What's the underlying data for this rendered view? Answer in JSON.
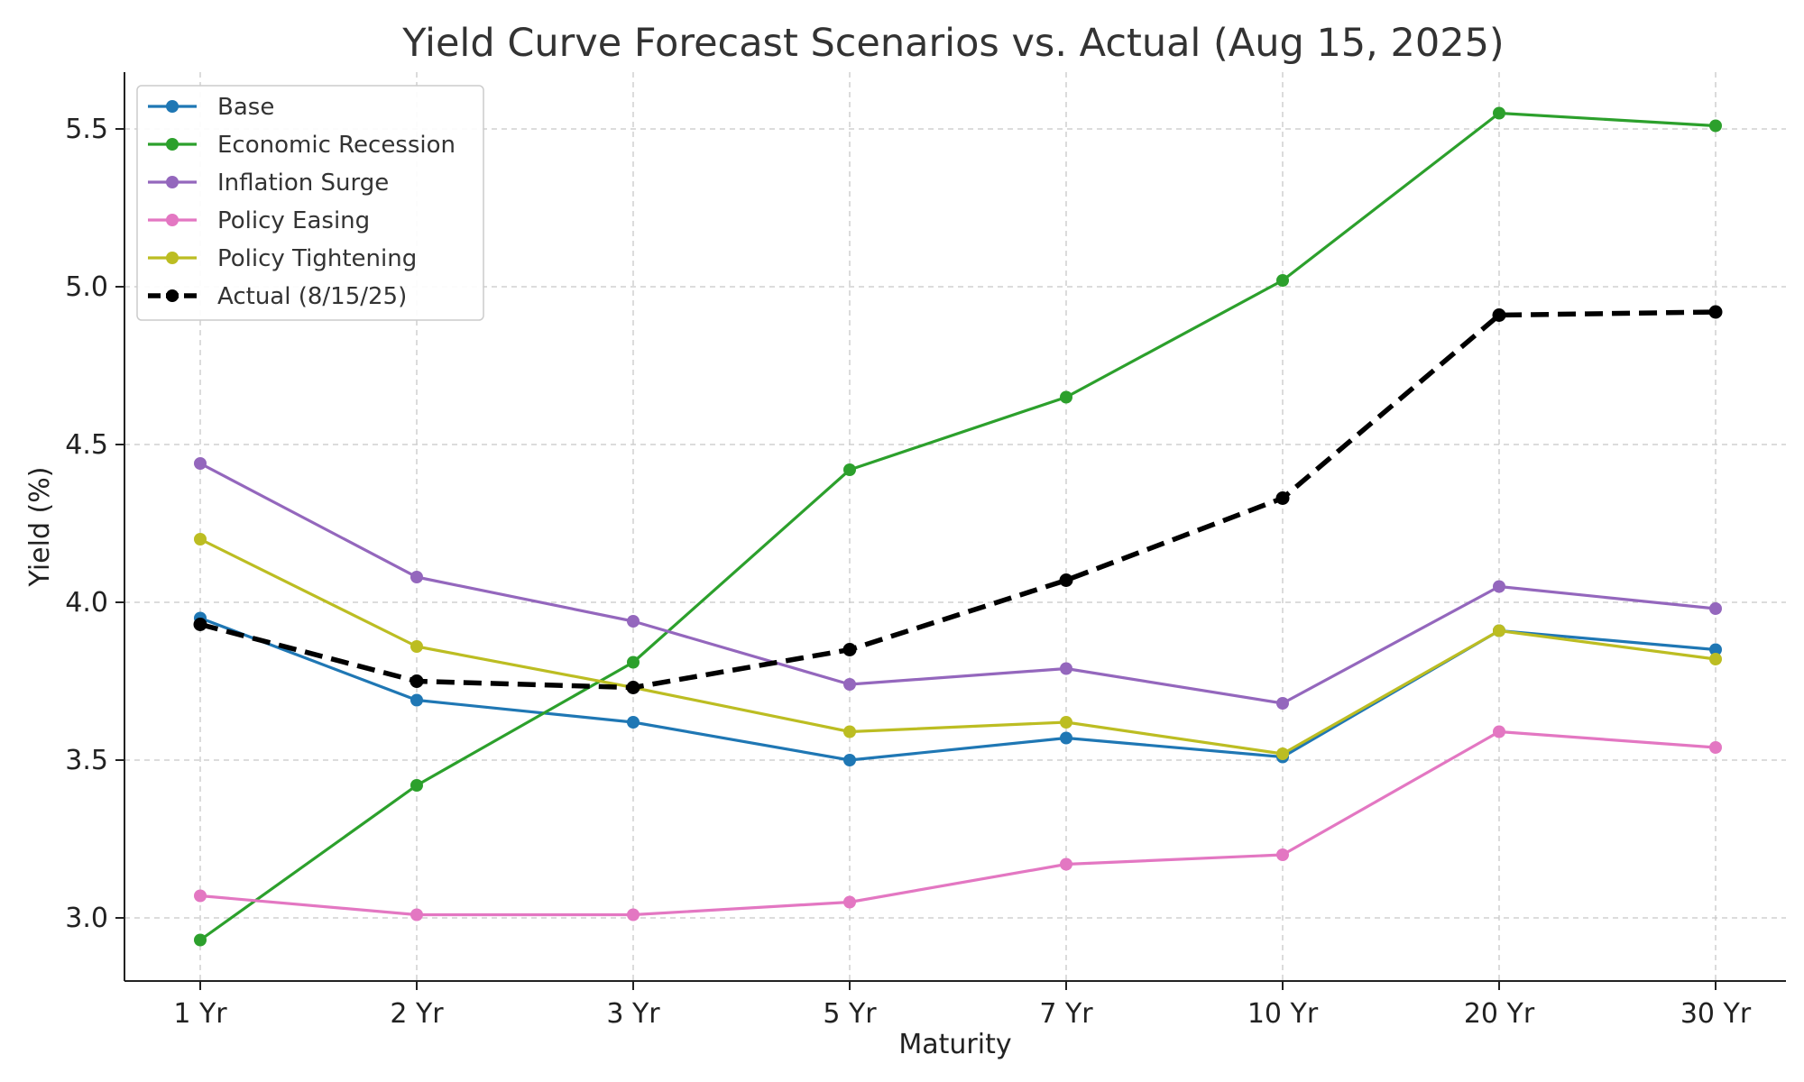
{
  "chart_data": {
    "type": "line",
    "title": "Yield Curve Forecast Scenarios vs. Actual (Aug 15, 2025)",
    "xlabel": "Maturity",
    "ylabel": "Yield (%)",
    "categories": [
      "1 Yr",
      "2 Yr",
      "3 Yr",
      "5 Yr",
      "7 Yr",
      "10 Yr",
      "20 Yr",
      "30 Yr"
    ],
    "ylim": [
      2.8,
      5.68
    ],
    "yticks": [
      "3.0",
      "3.5",
      "4.0",
      "4.5",
      "5.0",
      "5.5"
    ],
    "grid": true,
    "legend_position": "upper-left",
    "series": [
      {
        "name": "Base",
        "color": "#1f77b4",
        "dashed": false,
        "values": [
          3.95,
          3.69,
          3.62,
          3.5,
          3.57,
          3.51,
          3.91,
          3.85
        ]
      },
      {
        "name": "Economic Recession",
        "color": "#2ca02c",
        "dashed": false,
        "values": [
          2.93,
          3.42,
          3.81,
          4.42,
          4.65,
          5.02,
          5.55,
          5.51
        ]
      },
      {
        "name": "Inflation Surge",
        "color": "#9467bd",
        "dashed": false,
        "values": [
          4.44,
          4.08,
          3.94,
          3.74,
          3.79,
          3.68,
          4.05,
          3.98
        ]
      },
      {
        "name": "Policy Easing",
        "color": "#e377c2",
        "dashed": false,
        "values": [
          3.07,
          3.01,
          3.01,
          3.05,
          3.17,
          3.2,
          3.59,
          3.54
        ]
      },
      {
        "name": "Policy Tightening",
        "color": "#bcbd22",
        "dashed": false,
        "values": [
          4.2,
          3.86,
          3.73,
          3.59,
          3.62,
          3.52,
          3.91,
          3.82
        ]
      },
      {
        "name": "Actual (8/15/25)",
        "color": "#000000",
        "dashed": true,
        "values": [
          3.93,
          3.75,
          3.73,
          3.85,
          4.07,
          4.33,
          4.91,
          4.92
        ]
      }
    ]
  }
}
